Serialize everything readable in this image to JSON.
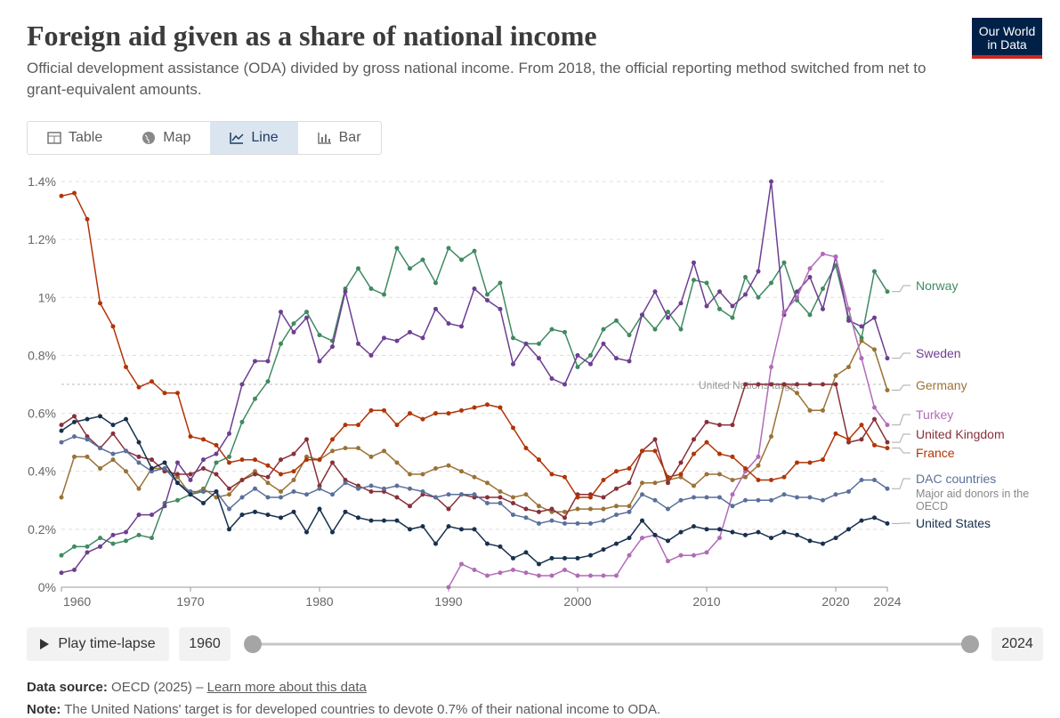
{
  "header": {
    "title": "Foreign aid given as a share of national income",
    "subtitle": "Official development assistance (ODA) divided by gross national income. From 2018, the official reporting method switched from net to grant-equivalent amounts.",
    "logo": [
      "Our World",
      "in Data"
    ]
  },
  "tabs": [
    "Table",
    "Map",
    "Line",
    "Bar"
  ],
  "controls": {
    "play": "Play time-lapse",
    "start": "1960",
    "end": "2024"
  },
  "footer": {
    "source_label": "Data source:",
    "source": "OECD (2025) – ",
    "source_link": "Learn more about this data",
    "note_label": "Note:",
    "note": "The United Nations' target is for developed countries to devote 0.7% of their national income to ODA."
  },
  "chart_data": {
    "type": "line",
    "x": [
      1960,
      1961,
      1962,
      1963,
      1964,
      1965,
      1966,
      1967,
      1968,
      1969,
      1970,
      1971,
      1972,
      1973,
      1974,
      1975,
      1976,
      1977,
      1978,
      1979,
      1980,
      1981,
      1982,
      1983,
      1984,
      1985,
      1986,
      1987,
      1988,
      1989,
      1990,
      1991,
      1992,
      1993,
      1994,
      1995,
      1996,
      1997,
      1998,
      1999,
      2000,
      2001,
      2002,
      2003,
      2004,
      2005,
      2006,
      2007,
      2008,
      2009,
      2010,
      2011,
      2012,
      2013,
      2014,
      2015,
      2016,
      2017,
      2018,
      2019,
      2020,
      2021,
      2022,
      2023,
      2024
    ],
    "xlim": [
      1960,
      2024
    ],
    "xticks": [
      1960,
      1970,
      1980,
      1990,
      2000,
      2010,
      2020,
      2024
    ],
    "ylim": [
      0,
      1.4
    ],
    "yticks": [
      {
        "value": 0,
        "label": "0%"
      },
      {
        "value": 0.2,
        "label": "0.2%"
      },
      {
        "value": 0.4,
        "label": "0.4%"
      },
      {
        "value": 0.6,
        "label": "0.6%"
      },
      {
        "value": 0.8,
        "label": "0.8%"
      },
      {
        "value": 1,
        "label": "1%"
      },
      {
        "value": 1.2,
        "label": "1.2%"
      },
      {
        "value": 1.4,
        "label": "1.4%"
      }
    ],
    "grid": true,
    "un_target": {
      "value": 0.7,
      "label": "United Nations target"
    },
    "series": [
      {
        "name": "Norway",
        "color": "#3f8a62",
        "values": [
          0.11,
          0.14,
          0.14,
          0.17,
          0.15,
          0.16,
          0.18,
          0.17,
          0.29,
          0.3,
          0.32,
          0.33,
          0.43,
          0.45,
          0.57,
          0.65,
          0.71,
          0.84,
          0.91,
          0.95,
          0.87,
          0.85,
          1.03,
          1.1,
          1.03,
          1.01,
          1.17,
          1.1,
          1.13,
          1.05,
          1.17,
          1.13,
          1.16,
          1.01,
          1.05,
          0.86,
          0.84,
          0.84,
          0.89,
          0.88,
          0.76,
          0.8,
          0.89,
          0.92,
          0.87,
          0.94,
          0.89,
          0.95,
          0.89,
          1.06,
          1.05,
          0.96,
          0.93,
          1.07,
          1.0,
          1.05,
          1.12,
          0.99,
          0.94,
          1.03,
          1.11,
          0.93,
          0.86,
          1.09,
          1.02
        ]
      },
      {
        "name": "Sweden",
        "color": "#6d3e91",
        "values": [
          0.05,
          0.06,
          0.12,
          0.14,
          0.18,
          0.19,
          0.25,
          0.25,
          0.28,
          0.43,
          0.37,
          0.44,
          0.46,
          0.53,
          0.7,
          0.78,
          0.78,
          0.95,
          0.88,
          0.93,
          0.78,
          0.83,
          1.02,
          0.84,
          0.8,
          0.86,
          0.85,
          0.88,
          0.86,
          0.96,
          0.91,
          0.9,
          1.03,
          0.99,
          0.96,
          0.77,
          0.84,
          0.79,
          0.72,
          0.7,
          0.8,
          0.77,
          0.84,
          0.79,
          0.78,
          0.94,
          1.02,
          0.93,
          0.98,
          1.12,
          0.97,
          1.02,
          0.97,
          1.01,
          1.09,
          1.4,
          0.94,
          1.02,
          1.07,
          0.96,
          1.14,
          0.92,
          0.9,
          0.93,
          0.79
        ]
      },
      {
        "name": "Germany",
        "color": "#9a7237",
        "values": [
          0.31,
          0.45,
          0.45,
          0.41,
          0.44,
          0.4,
          0.34,
          0.41,
          0.41,
          0.38,
          0.32,
          0.34,
          0.31,
          0.32,
          0.37,
          0.4,
          0.36,
          0.33,
          0.37,
          0.45,
          0.44,
          0.47,
          0.48,
          0.48,
          0.45,
          0.47,
          0.43,
          0.39,
          0.39,
          0.41,
          0.42,
          0.4,
          0.38,
          0.36,
          0.33,
          0.31,
          0.32,
          0.28,
          0.26,
          0.26,
          0.27,
          0.27,
          0.27,
          0.28,
          0.28,
          0.36,
          0.36,
          0.37,
          0.38,
          0.35,
          0.39,
          0.39,
          0.37,
          0.38,
          0.42,
          0.52,
          0.7,
          0.67,
          0.61,
          0.61,
          0.73,
          0.76,
          0.85,
          0.82,
          0.68
        ]
      },
      {
        "name": "Turkey",
        "color": "#b16bb8",
        "values": [
          null,
          null,
          null,
          null,
          null,
          null,
          null,
          null,
          null,
          null,
          null,
          null,
          null,
          null,
          null,
          null,
          null,
          null,
          null,
          null,
          null,
          null,
          null,
          null,
          null,
          null,
          null,
          null,
          null,
          null,
          0.0,
          0.08,
          0.06,
          0.04,
          0.05,
          0.06,
          0.05,
          0.04,
          0.04,
          0.06,
          0.04,
          0.04,
          0.04,
          0.04,
          0.11,
          0.17,
          0.18,
          0.09,
          0.11,
          0.11,
          0.12,
          0.17,
          0.32,
          0.4,
          0.45,
          0.76,
          0.95,
          1.0,
          1.1,
          1.15,
          1.14,
          0.96,
          0.79,
          0.62,
          0.56
        ]
      },
      {
        "name": "United Kingdom",
        "color": "#883039",
        "values": [
          0.56,
          0.59,
          0.52,
          0.48,
          0.53,
          0.47,
          0.45,
          0.44,
          0.4,
          0.39,
          0.39,
          0.41,
          0.39,
          0.34,
          0.37,
          0.39,
          0.38,
          0.44,
          0.46,
          0.51,
          0.35,
          0.43,
          0.37,
          0.35,
          0.33,
          0.33,
          0.31,
          0.28,
          0.32,
          0.31,
          0.27,
          0.32,
          0.31,
          0.31,
          0.31,
          0.29,
          0.27,
          0.26,
          0.27,
          0.24,
          0.32,
          0.32,
          0.31,
          0.34,
          0.36,
          0.47,
          0.51,
          0.36,
          0.43,
          0.51,
          0.57,
          0.56,
          0.56,
          0.7,
          0.7,
          0.7,
          0.7,
          0.7,
          0.7,
          0.7,
          0.7,
          0.5,
          0.51,
          0.58,
          0.5
        ]
      },
      {
        "name": "France",
        "color": "#b13507",
        "values": [
          1.35,
          1.36,
          1.27,
          0.98,
          0.9,
          0.76,
          0.69,
          0.71,
          0.67,
          0.67,
          0.52,
          0.51,
          0.49,
          0.43,
          0.44,
          0.44,
          0.42,
          0.39,
          0.4,
          0.44,
          0.44,
          0.51,
          0.56,
          0.56,
          0.61,
          0.61,
          0.56,
          0.6,
          0.58,
          0.6,
          0.6,
          0.61,
          0.62,
          0.63,
          0.62,
          0.55,
          0.48,
          0.44,
          0.39,
          0.38,
          0.31,
          0.31,
          0.37,
          0.4,
          0.41,
          0.47,
          0.47,
          0.38,
          0.39,
          0.46,
          0.5,
          0.46,
          0.45,
          0.41,
          0.37,
          0.37,
          0.38,
          0.43,
          0.43,
          0.44,
          0.53,
          0.51,
          0.56,
          0.49,
          0.48
        ]
      },
      {
        "name": "DAC countries",
        "color": "#5a709b",
        "values": [
          0.5,
          0.52,
          0.51,
          0.48,
          0.46,
          0.47,
          0.43,
          0.4,
          0.41,
          0.36,
          0.33,
          0.33,
          0.33,
          0.27,
          0.31,
          0.34,
          0.31,
          0.31,
          0.33,
          0.32,
          0.34,
          0.32,
          0.36,
          0.34,
          0.35,
          0.34,
          0.35,
          0.34,
          0.33,
          0.31,
          0.32,
          0.32,
          0.32,
          0.29,
          0.29,
          0.25,
          0.24,
          0.22,
          0.23,
          0.22,
          0.22,
          0.22,
          0.23,
          0.25,
          0.26,
          0.32,
          0.3,
          0.27,
          0.3,
          0.31,
          0.31,
          0.31,
          0.28,
          0.3,
          0.3,
          0.3,
          0.32,
          0.31,
          0.31,
          0.3,
          0.32,
          0.33,
          0.37,
          0.37,
          0.34
        ],
        "description": "Major aid donors in the OECD"
      },
      {
        "name": "United States",
        "color": "#18304e",
        "values": [
          0.54,
          0.57,
          0.58,
          0.59,
          0.56,
          0.58,
          0.5,
          0.41,
          0.43,
          0.36,
          0.32,
          0.29,
          0.33,
          0.2,
          0.25,
          0.26,
          0.25,
          0.24,
          0.26,
          0.19,
          0.27,
          0.19,
          0.26,
          0.24,
          0.23,
          0.23,
          0.23,
          0.2,
          0.21,
          0.15,
          0.21,
          0.2,
          0.2,
          0.15,
          0.14,
          0.1,
          0.12,
          0.08,
          0.1,
          0.1,
          0.1,
          0.11,
          0.13,
          0.15,
          0.17,
          0.23,
          0.18,
          0.16,
          0.19,
          0.21,
          0.2,
          0.2,
          0.19,
          0.18,
          0.19,
          0.17,
          0.19,
          0.18,
          0.16,
          0.15,
          0.17,
          0.2,
          0.23,
          0.24,
          0.22
        ]
      }
    ]
  }
}
